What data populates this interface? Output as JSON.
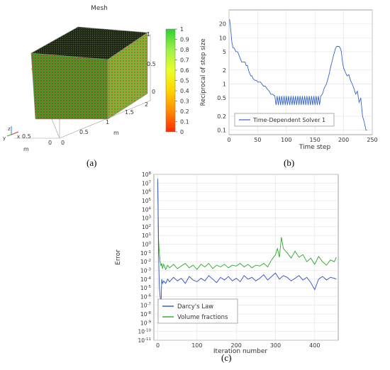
{
  "chart_data": [
    {
      "type": "3d-mesh",
      "title": "Mesh",
      "colorbar": {
        "ticks": [
          "1",
          "0.9",
          "0.8",
          "0.7",
          "0.6",
          "0.5",
          "0.4",
          "0.3",
          "0.2",
          "0.1",
          "0"
        ],
        "colors": [
          "#ff2a00",
          "#ff8a00",
          "#ffd400",
          "#e9ff2a",
          "#9ef04a",
          "#2fd12f"
        ]
      },
      "z_ticks": [
        "1",
        "0.5",
        "0"
      ],
      "x_ticks": [
        "0",
        "0.5",
        "1",
        "1.5",
        "2"
      ],
      "y_ticks": [
        "0",
        "0.5"
      ],
      "xlabel": "m",
      "ylabel": "m",
      "axis_triad": [
        "z",
        "y",
        "x"
      ],
      "box_colors": {
        "top": "#2a2f1f",
        "front": "#4aa52a",
        "side": "#7dbd39",
        "edge": "#8a8a8a"
      },
      "caption": "(a)"
    },
    {
      "type": "line",
      "xlabel": "Time step",
      "ylabel": "Reciprocal of step size",
      "yscale": "log",
      "xlim": [
        0,
        250
      ],
      "ylim": [
        0.08,
        40
      ],
      "x_ticks": [
        "0",
        "50",
        "100",
        "150",
        "200",
        "250"
      ],
      "y_ticks": [
        "20",
        "10",
        "5",
        "2",
        "1",
        "0.5",
        "0.2",
        "0.1"
      ],
      "grid": true,
      "legend_position": "bottom-left",
      "series": [
        {
          "name": "Time-Dependent Solver 1",
          "color": "#3465c8",
          "x": [
            1,
            3,
            5,
            7,
            9,
            12,
            15,
            18,
            22,
            25,
            28,
            30,
            32,
            35,
            38,
            40,
            42,
            45,
            48,
            50,
            55,
            60,
            63,
            66,
            70,
            73,
            76,
            80,
            82,
            84,
            86,
            88,
            90,
            92,
            94,
            96,
            98,
            100,
            102,
            104,
            106,
            108,
            110,
            112,
            114,
            116,
            118,
            120,
            122,
            124,
            126,
            128,
            130,
            132,
            134,
            136,
            138,
            140,
            142,
            144,
            146,
            148,
            150,
            152,
            154,
            156,
            158,
            160,
            163,
            166,
            170,
            174,
            178,
            182,
            186,
            188,
            190,
            192,
            194,
            196,
            198,
            200,
            203,
            206,
            209,
            212,
            215,
            218,
            221,
            224,
            227,
            230,
            233,
            236,
            239,
            241
          ],
          "y": [
            25,
            15,
            8,
            6,
            6,
            5,
            5,
            4,
            3,
            3,
            3,
            2.5,
            2.5,
            1.8,
            1.5,
            1.5,
            1.3,
            1.2,
            1.2,
            1.1,
            1.1,
            0.9,
            0.9,
            0.8,
            0.7,
            0.6,
            0.6,
            0.55,
            0.35,
            0.55,
            0.35,
            0.55,
            0.35,
            0.55,
            0.35,
            0.55,
            0.35,
            0.55,
            0.35,
            0.55,
            0.35,
            0.55,
            0.35,
            0.55,
            0.35,
            0.55,
            0.35,
            0.55,
            0.35,
            0.55,
            0.35,
            0.55,
            0.35,
            0.55,
            0.35,
            0.55,
            0.35,
            0.55,
            0.35,
            0.55,
            0.35,
            0.55,
            0.35,
            0.55,
            0.35,
            0.55,
            0.35,
            0.55,
            0.6,
            0.8,
            1.0,
            1.5,
            2.5,
            4,
            6,
            6.5,
            6.5,
            6.5,
            6,
            5,
            3,
            2.2,
            1.8,
            1.5,
            1.6,
            1.2,
            1.0,
            0.8,
            0.6,
            0.7,
            0.4,
            0.5,
            0.2,
            0.15,
            0.1,
            0.1
          ]
        }
      ],
      "caption": "(b)"
    },
    {
      "type": "line",
      "xlabel": "Iteration number",
      "ylabel": "Error",
      "yscale": "log",
      "xlim": [
        -10,
        460
      ],
      "ylim_exponent": [
        -11,
        8
      ],
      "x_ticks": [
        "0",
        "100",
        "200",
        "300",
        "400"
      ],
      "y_tick_mantissa": "10",
      "y_tick_exponents": [
        "8",
        "7",
        "6",
        "5",
        "4",
        "3",
        "2",
        "1",
        "0",
        "-1",
        "-2",
        "-3",
        "-4",
        "-5",
        "-6",
        "-7",
        "-8",
        "-9",
        "-10",
        "-11"
      ],
      "grid": true,
      "legend_position": "bottom-left",
      "series": [
        {
          "name": "Darcy's Law",
          "color": "#2f4fc4",
          "x": [
            0,
            2,
            4,
            6,
            8,
            10,
            12,
            15,
            20,
            25,
            30,
            40,
            50,
            60,
            70,
            80,
            90,
            100,
            110,
            120,
            130,
            140,
            150,
            160,
            170,
            180,
            190,
            200,
            210,
            220,
            230,
            240,
            250,
            260,
            270,
            280,
            290,
            300,
            310,
            320,
            330,
            340,
            350,
            360,
            370,
            380,
            390,
            400,
            410,
            420,
            430,
            440,
            450,
            455
          ],
          "log10_y": [
            7.5,
            -1,
            -5,
            -6,
            -7,
            -4,
            -4.5,
            -4.2,
            -4.5,
            -4,
            -4.3,
            -3.8,
            -4.2,
            -3.9,
            -4.5,
            -3.7,
            -4.1,
            -4.3,
            -3.9,
            -4.2,
            -3.6,
            -4.0,
            -4.4,
            -3.8,
            -4.1,
            -3.7,
            -4.2,
            -3.9,
            -4.3,
            -3.6,
            -4.0,
            -3.8,
            -4.2,
            -3.9,
            -3.5,
            -4.1,
            -3.7,
            -3.3,
            -4.0,
            -3.6,
            -3.8,
            -4.2,
            -3.9,
            -3.6,
            -4.1,
            -3.8,
            -4.4,
            -5.2,
            -4.0,
            -3.7,
            -4.1,
            -3.8,
            -3.9,
            -4.0
          ]
        },
        {
          "name": "Volume fractions",
          "color": "#2aa82a",
          "x": [
            0,
            2,
            4,
            6,
            8,
            10,
            12,
            15,
            20,
            25,
            30,
            40,
            50,
            60,
            70,
            80,
            90,
            100,
            110,
            120,
            130,
            140,
            150,
            160,
            170,
            180,
            190,
            200,
            210,
            220,
            230,
            240,
            250,
            260,
            270,
            280,
            290,
            300,
            305,
            310,
            315,
            320,
            330,
            340,
            350,
            360,
            370,
            380,
            390,
            400,
            410,
            420,
            430,
            440,
            450,
            455
          ],
          "log10_y": [
            7.0,
            0.5,
            -1,
            -2,
            -2.5,
            -2.2,
            -2.8,
            -2.3,
            -2.9,
            -2.4,
            -2.7,
            -2.3,
            -2.8,
            -2.5,
            -2.2,
            -2.7,
            -2.4,
            -2.9,
            -2.3,
            -2.6,
            -2.2,
            -2.8,
            -2.4,
            -2.6,
            -2.3,
            -2.7,
            -2.4,
            -2.5,
            -2.2,
            -2.6,
            -2.3,
            -2.7,
            -2.4,
            -2.5,
            -2.2,
            -2.6,
            -1.8,
            -1.2,
            -0.5,
            -1.5,
            0.8,
            -0.5,
            -1.0,
            -1.6,
            -0.8,
            -1.5,
            -1.2,
            -2.0,
            -1.6,
            -2.3,
            -1.4,
            -2.0,
            -2.4,
            -1.8,
            -2.0,
            -1.5
          ]
        }
      ],
      "caption": "(c)"
    }
  ]
}
